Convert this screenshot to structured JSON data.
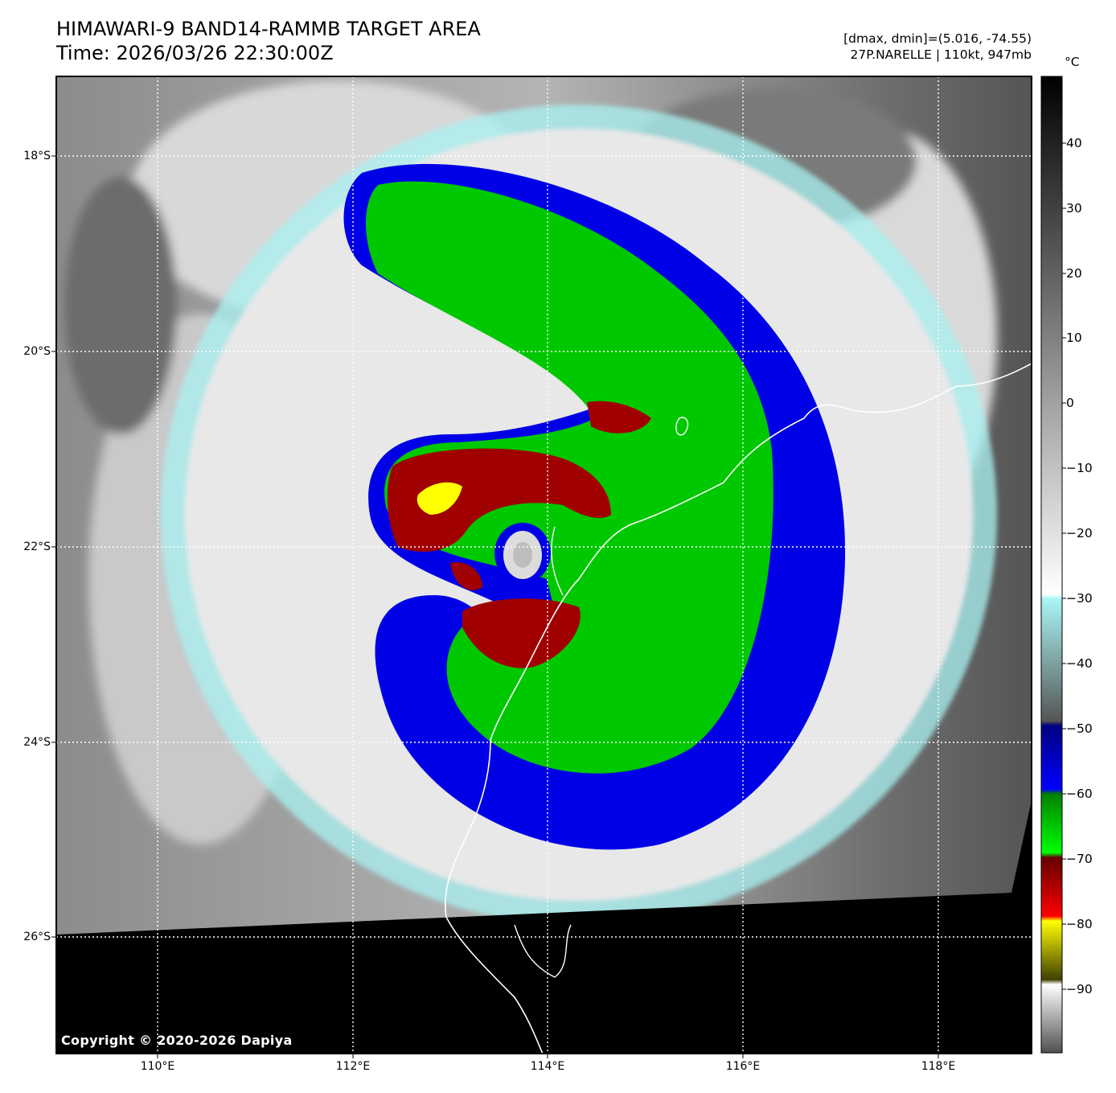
{
  "header": {
    "title_line1": "HIMAWARI-9 BAND14-RAMMB TARGET AREA",
    "title_line2": "Time: 2026/03/26 22:30:00Z",
    "meta_line1": "[dmax, dmin]=(5.016, -74.55)",
    "meta_line2": "27P.NARELLE | 110kt, 947mb"
  },
  "map": {
    "lat_labels": [
      "18°S",
      "20°S",
      "22°S",
      "24°S",
      "26°S"
    ],
    "lon_labels": [
      "110°E",
      "112°E",
      "114°E",
      "116°E",
      "118°E"
    ],
    "copyright": "Copyright © 2020-2026 Dapiya"
  },
  "colorbar": {
    "unit": "°C",
    "ticks": [
      "40",
      "30",
      "20",
      "10",
      "0",
      "−10",
      "−20",
      "−30",
      "−40",
      "−50",
      "−60",
      "−70",
      "−80",
      "−90"
    ]
  },
  "colors": {
    "cold_blue": "#0000e6",
    "green": "#00c800",
    "red": "#a00000",
    "yellow": "#ffff00",
    "cyan": "#aaf5f5"
  }
}
